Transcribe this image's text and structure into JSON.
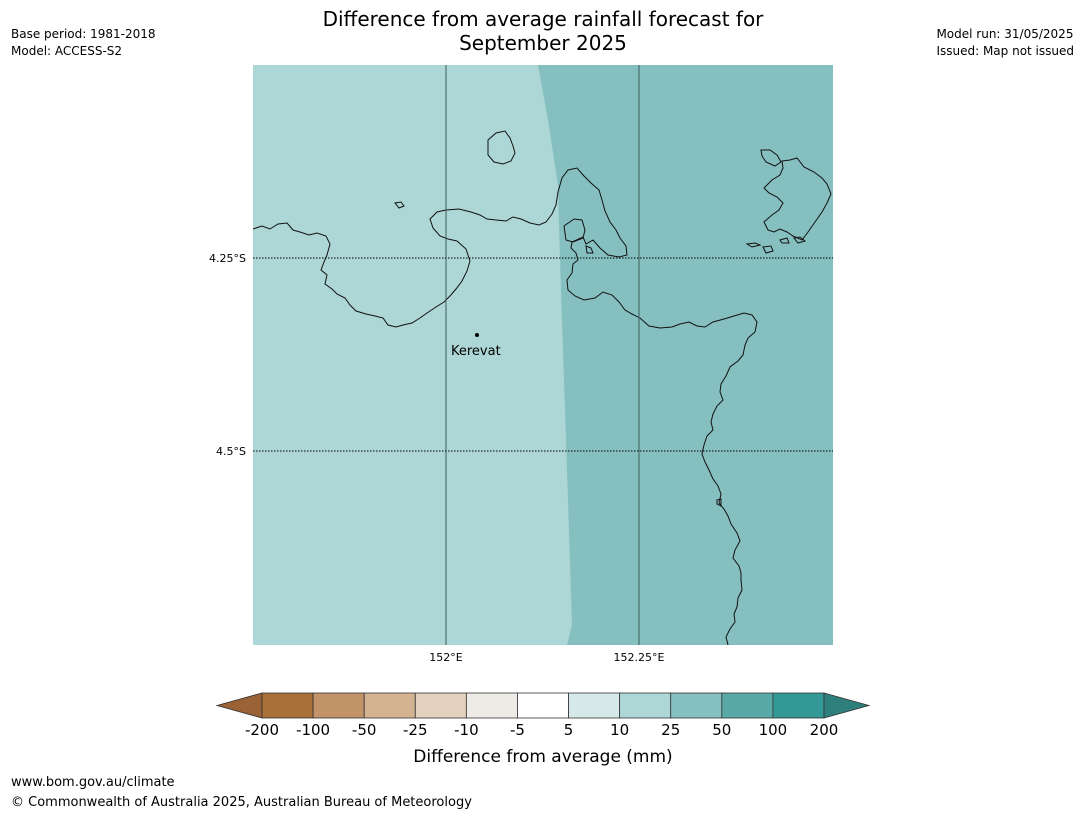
{
  "header": {
    "title_line1": "Difference from average rainfall forecast for",
    "title_line2": "September 2025",
    "base_period": "Base period: 1981-2018",
    "model": "Model: ACCESS-S2",
    "model_run": "Model run: 31/05/2025",
    "issued": "Issued: Map not issued"
  },
  "map": {
    "lat_labels": [
      "4.25°S",
      "4.5°S"
    ],
    "lon_labels": [
      "152°E",
      "152.25°E"
    ],
    "place_label": "Kerevat",
    "fill_colors": {
      "range_5_to_10": "#add6d6",
      "range_25_to_50": "#86bfbf"
    }
  },
  "legend": {
    "title": "Difference from average (mm)",
    "ticks": [
      "-200",
      "-100",
      "-50",
      "-25",
      "-10",
      "-5",
      "5",
      "10",
      "25",
      "50",
      "100",
      "200"
    ],
    "colors": [
      "#aa703a",
      "#c29269",
      "#d4b393",
      "#e3d0bd",
      "#eeeae6",
      "#ffffff",
      "#d6e9e8",
      "#add6d6",
      "#86bfbf",
      "#5aa9a9",
      "#339996"
    ],
    "low_end_color": "#9a6235",
    "high_end_color": "#2f7f7d"
  },
  "footer": {
    "url": "www.bom.gov.au/climate",
    "copyright": "© Commonwealth of Australia 2025, Australian Bureau of Meteorology"
  }
}
